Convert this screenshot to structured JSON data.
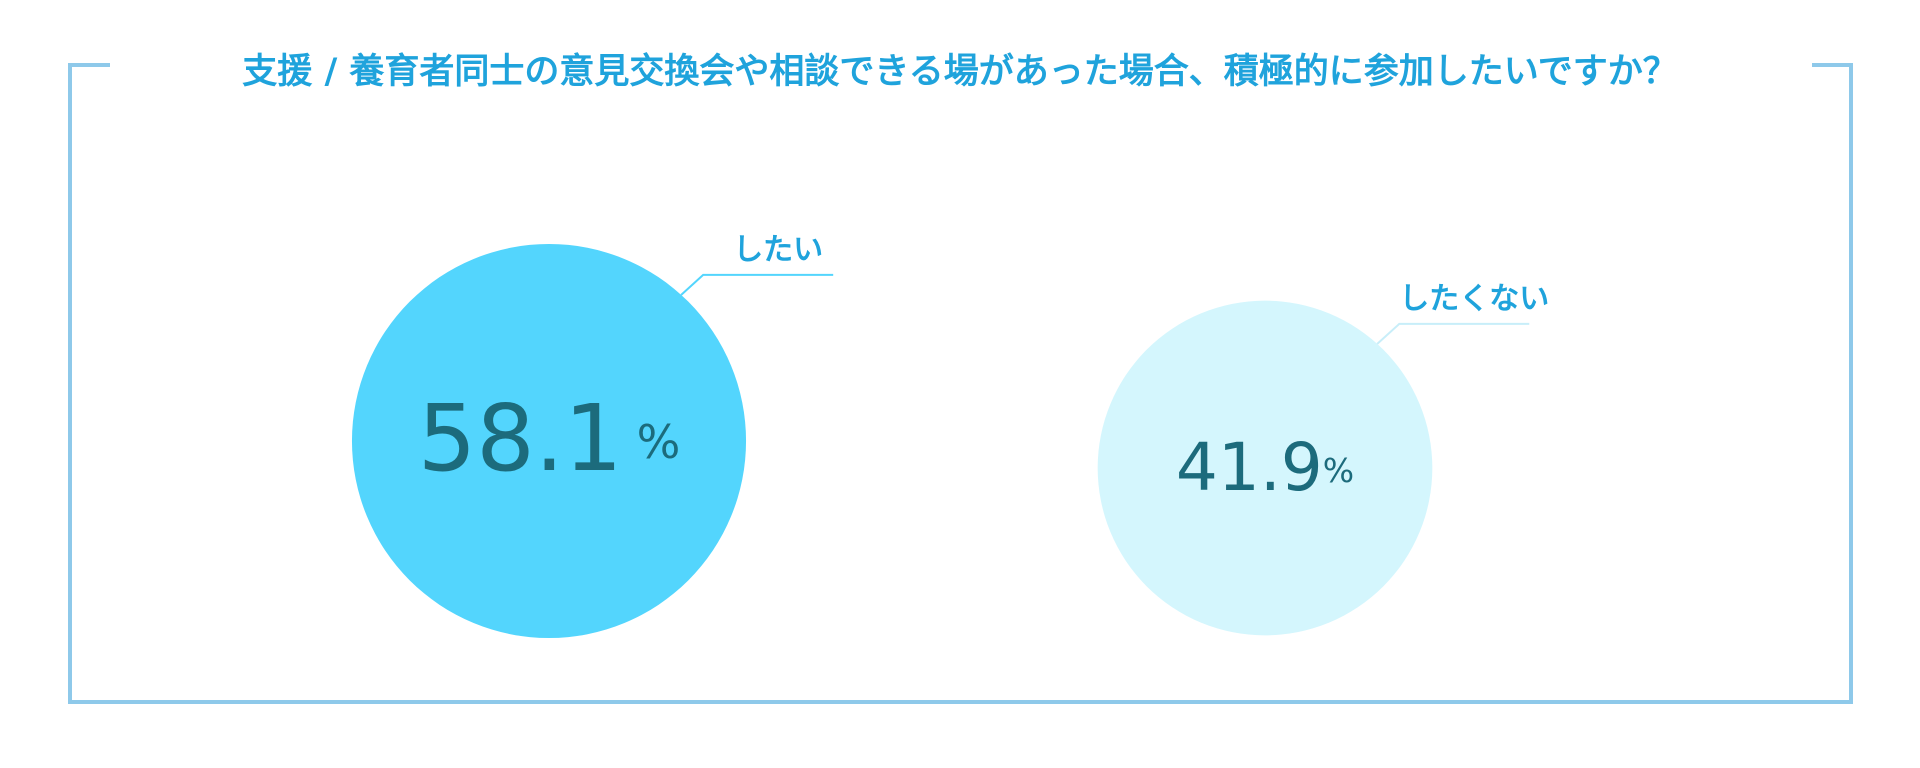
{
  "chart_data": {
    "type": "bubble",
    "title": "支援 / 養育者同士の意見交換会や相談できる場があった場合、積極的に参加したいですか？",
    "categories": [
      "したい",
      "したくない"
    ],
    "values": [
      58.1,
      41.9
    ],
    "unit": "%",
    "colors": [
      "#53d5fd",
      "#d4f6fd"
    ]
  }
}
